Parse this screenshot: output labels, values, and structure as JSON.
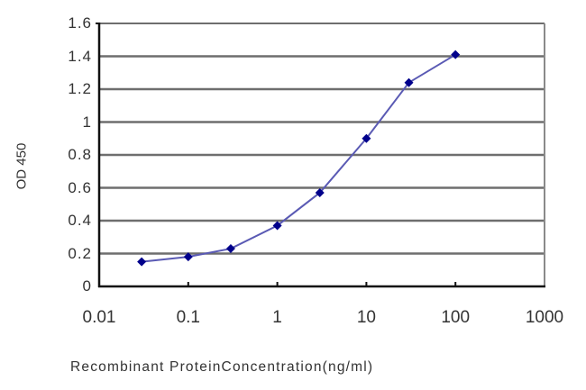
{
  "chart_data": {
    "type": "line",
    "title": "",
    "xlabel": "Recombinant ProteinConcentration(ng/ml)",
    "ylabel": "OD 450",
    "x_scale": "log",
    "xlim": [
      0.01,
      1000
    ],
    "ylim": [
      0,
      1.6
    ],
    "x_tick_labels": [
      "0.01",
      "0.1",
      "1",
      "10",
      "100",
      "1000"
    ],
    "y_tick_labels": [
      "0",
      "0.2",
      "0.4",
      "0.6",
      "0.8",
      "1",
      "1.2",
      "1.4",
      "1.6"
    ],
    "grid": {
      "horizontal": true,
      "vertical": false
    },
    "legend": null,
    "series": [
      {
        "name": "OD 450",
        "color": "#00008b",
        "line_color": "#5a5ab4",
        "marker": "diamond",
        "x": [
          0.03,
          0.1,
          0.3,
          1,
          3,
          10,
          30,
          100
        ],
        "values": [
          0.15,
          0.18,
          0.23,
          0.37,
          0.57,
          0.9,
          1.24,
          1.41
        ]
      }
    ]
  },
  "axes": {
    "y_ticks": [
      {
        "label": "1.6",
        "value": 1.6
      },
      {
        "label": "1.4",
        "value": 1.4
      },
      {
        "label": "1.2",
        "value": 1.2
      },
      {
        "label": "1",
        "value": 1.0
      },
      {
        "label": "0.8",
        "value": 0.8
      },
      {
        "label": "0.6",
        "value": 0.6
      },
      {
        "label": "0.4",
        "value": 0.4
      },
      {
        "label": "0.2",
        "value": 0.2
      },
      {
        "label": "0",
        "value": 0
      }
    ],
    "x_ticks": [
      {
        "label": "0.01"
      },
      {
        "label": "0.1"
      },
      {
        "label": "1"
      },
      {
        "label": "10"
      },
      {
        "label": "100"
      },
      {
        "label": "1000"
      }
    ],
    "ylabel": "OD 450",
    "xlabel": "Recombinant ProteinConcentration(ng/ml)"
  },
  "colors": {
    "gridline": "#6e6e6e",
    "axis": "#111111",
    "series": "#00008b",
    "line": "#5a5ab4"
  }
}
